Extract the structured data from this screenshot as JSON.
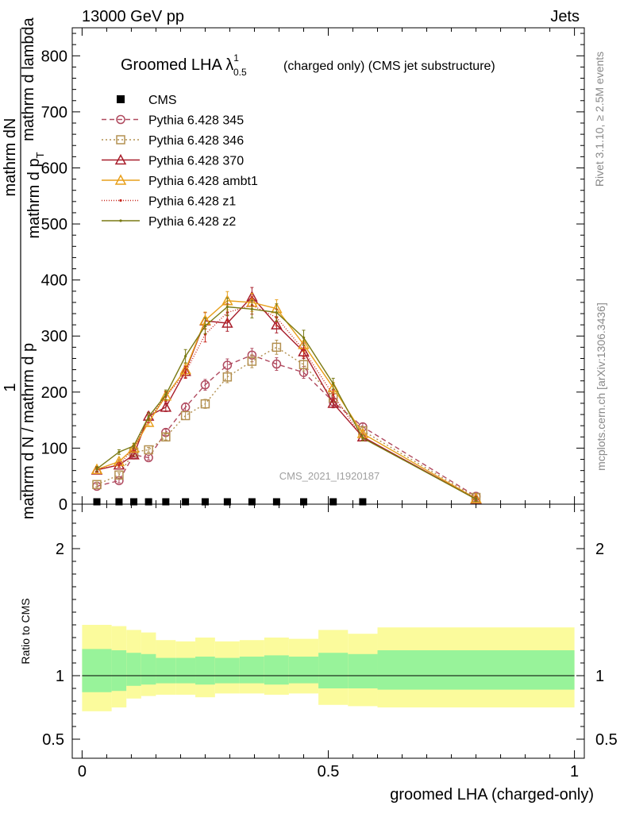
{
  "header": {
    "left": "13000 GeV pp",
    "right": "Jets"
  },
  "side": {
    "rivet": "Rivet 3.1.10, ≥ 2.5M events",
    "mcplots": "mcplots.cern.ch [arXiv:1306.3436]"
  },
  "chart_data": {
    "type": "line",
    "title": "Groomed LHA λ",
    "title_sup": "1",
    "title_sub": "0.5",
    "title_suffix": "(charged only) (CMS jet substructure)",
    "watermark": "CMS_2021_I1920187",
    "xlabel": "groomed LHA (charged-only)",
    "ylabel_top": "1",
    "ylabel_left1": "mathrm d N / mathrm d p",
    "ylabel_left2": "mathrm dN",
    "ylabel_left3": "mathrm d p",
    "ylabel_sub": "T",
    "ylabel_left4": "mathrm d lambda",
    "ratio_ylabel": "Ratio to CMS",
    "xlim": [
      -0.02,
      1.02
    ],
    "ylim": [
      0,
      850
    ],
    "ratio_ylim": [
      0.35,
      2.35
    ],
    "xticks": [
      {
        "v": 0,
        "label": "0"
      },
      {
        "v": 0.5,
        "label": "0.5"
      },
      {
        "v": 1,
        "label": "1"
      }
    ],
    "yticks": [
      {
        "v": 0,
        "label": "0"
      },
      {
        "v": 100,
        "label": "100"
      },
      {
        "v": 200,
        "label": "200"
      },
      {
        "v": 300,
        "label": "300"
      },
      {
        "v": 400,
        "label": "400"
      },
      {
        "v": 500,
        "label": "500"
      },
      {
        "v": 600,
        "label": "600"
      },
      {
        "v": 700,
        "label": "700"
      },
      {
        "v": 800,
        "label": "800"
      }
    ],
    "ratio_yticks": [
      {
        "v": 0.5,
        "label": "0.5"
      },
      {
        "v": 1,
        "label": "1"
      },
      {
        "v": 2,
        "label": "2"
      }
    ],
    "x": [
      0.03,
      0.075,
      0.105,
      0.135,
      0.17,
      0.21,
      0.25,
      0.295,
      0.345,
      0.395,
      0.45,
      0.51,
      0.57,
      0.8
    ],
    "cms": [
      1,
      1,
      1,
      1,
      1,
      1,
      1,
      1,
      1,
      1,
      1,
      1,
      1,
      1
    ],
    "series": [
      {
        "name": "Pythia 6.428 345",
        "color": "#b04a5f",
        "dash": "6,4",
        "marker": "circle",
        "values": [
          32,
          42,
          88,
          83,
          128,
          173,
          213,
          248,
          266,
          250,
          235,
          183,
          138,
          14
        ]
      },
      {
        "name": "Pythia 6.428 346",
        "color": "#b39050",
        "dash": "2,3",
        "marker": "square",
        "values": [
          35,
          52,
          93,
          97,
          120,
          158,
          179,
          227,
          255,
          280,
          249,
          190,
          131,
          12
        ]
      },
      {
        "name": "Pythia 6.428 370",
        "color": "#a81e2b",
        "dash": "",
        "marker": "triangle",
        "values": [
          61,
          70,
          88,
          157,
          173,
          237,
          327,
          323,
          370,
          320,
          272,
          180,
          120,
          9
        ]
      },
      {
        "name": "Pythia 6.428 ambt1",
        "color": "#e8a01c",
        "dash": "",
        "marker": "triangle",
        "values": [
          62,
          76,
          100,
          146,
          193,
          240,
          328,
          363,
          360,
          349,
          285,
          208,
          126,
          10
        ]
      },
      {
        "name": "Pythia 6.428 z1",
        "color": "#c8281e",
        "dash": "1,2",
        "marker": "dot",
        "values": [
          62,
          70,
          100,
          152,
          192,
          235,
          303,
          342,
          355,
          333,
          275,
          195,
          118,
          10
        ]
      },
      {
        "name": "Pythia 6.428 z2",
        "color": "#7a7a14",
        "dash": "",
        "marker": "dot",
        "values": [
          63,
          93,
          104,
          156,
          195,
          264,
          318,
          352,
          348,
          342,
          297,
          215,
          118,
          9
        ]
      }
    ],
    "ratio_band": {
      "edges": [
        0,
        0.06,
        0.09,
        0.12,
        0.15,
        0.19,
        0.23,
        0.27,
        0.32,
        0.37,
        0.42,
        0.48,
        0.54,
        0.6,
        1.0
      ],
      "yellow_low": [
        0.72,
        0.75,
        0.82,
        0.84,
        0.85,
        0.85,
        0.83,
        0.86,
        0.86,
        0.85,
        0.86,
        0.77,
        0.76,
        0.75
      ],
      "yellow_high": [
        1.4,
        1.39,
        1.36,
        1.34,
        1.28,
        1.27,
        1.3,
        1.27,
        1.28,
        1.3,
        1.29,
        1.36,
        1.33,
        1.38
      ],
      "green_low": [
        0.87,
        0.88,
        0.92,
        0.93,
        0.94,
        0.94,
        0.93,
        0.94,
        0.94,
        0.93,
        0.94,
        0.9,
        0.9,
        0.89
      ],
      "green_high": [
        1.21,
        1.2,
        1.18,
        1.17,
        1.14,
        1.14,
        1.15,
        1.14,
        1.15,
        1.16,
        1.15,
        1.18,
        1.17,
        1.2
      ]
    },
    "colors": {
      "band_yellow": "#fbfb9c",
      "band_green": "#98f39a",
      "cms": "#000000"
    }
  }
}
